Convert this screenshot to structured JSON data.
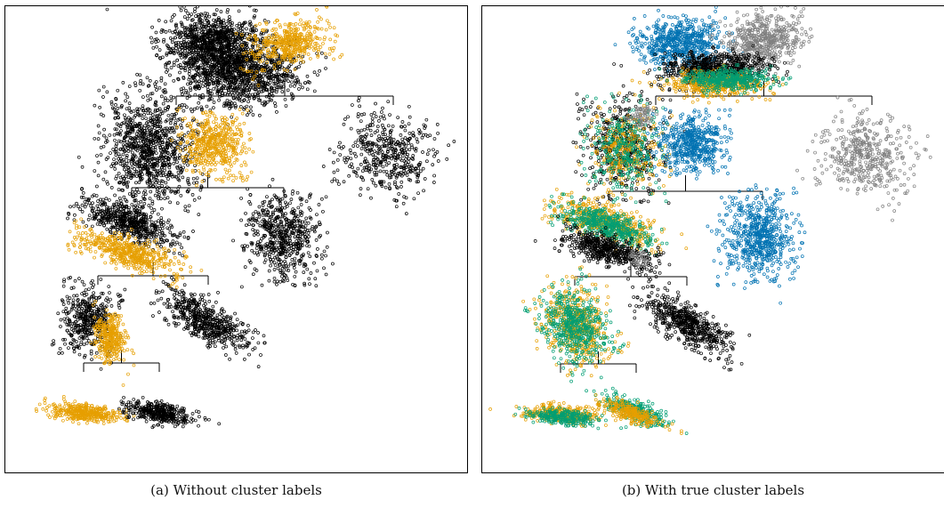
{
  "panels": [
    {
      "id": "a",
      "caption": "(a) Without cluster labels",
      "levels": [
        {
          "clusters": [
            {
              "colors": [
                "#000000",
                "#000000",
                "#E69F00"
              ],
              "name": "root"
            }
          ]
        },
        {
          "clusters": [
            {
              "colors": [
                "#000000",
                "#E69F00"
              ],
              "name": "level2-left"
            },
            {
              "colors": [
                "#000000"
              ],
              "name": "level2-right"
            }
          ]
        },
        {
          "clusters": [
            {
              "colors": [
                "#000000",
                "#E69F00"
              ],
              "name": "level3-left"
            },
            {
              "colors": [
                "#000000"
              ],
              "name": "level3-right"
            }
          ]
        },
        {
          "clusters": [
            {
              "colors": [
                "#000000",
                "#E69F00"
              ],
              "name": "level4-left"
            },
            {
              "colors": [
                "#000000"
              ],
              "name": "level4-right"
            }
          ]
        },
        {
          "clusters": [
            {
              "colors": [
                "#E69F00"
              ],
              "name": "leaf-left"
            },
            {
              "colors": [
                "#000000"
              ],
              "name": "leaf-right"
            }
          ]
        }
      ]
    },
    {
      "id": "b",
      "caption": "(b) With true cluster labels",
      "levels": [
        {
          "clusters": [
            {
              "colors": [
                "#0072B2",
                "#808080",
                "#000000",
                "#E69F00",
                "#009E73"
              ],
              "name": "root"
            }
          ]
        },
        {
          "clusters": [
            {
              "colors": [
                "#000000",
                "#E69F00",
                "#009E73",
                "#808080"
              ],
              "name": "level2-left"
            },
            {
              "colors": [
                "#0072B2"
              ],
              "name": "level2-middle"
            },
            {
              "colors": [
                "#808080"
              ],
              "name": "level2-right"
            }
          ]
        },
        {
          "clusters": [
            {
              "colors": [
                "#E69F00",
                "#009E73",
                "#000000",
                "#808080"
              ],
              "name": "level3-left"
            },
            {
              "colors": [
                "#0072B2"
              ],
              "name": "level3-right"
            }
          ]
        },
        {
          "clusters": [
            {
              "colors": [
                "#E69F00",
                "#009E73"
              ],
              "name": "level4-left"
            },
            {
              "colors": [
                "#000000"
              ],
              "name": "level4-right"
            }
          ]
        },
        {
          "clusters": [
            {
              "colors": [
                "#E69F00",
                "#009E73"
              ],
              "name": "leaf-left"
            },
            {
              "colors": [
                "#009E73",
                "#E69F00"
              ],
              "name": "leaf-right"
            }
          ]
        }
      ]
    }
  ]
}
